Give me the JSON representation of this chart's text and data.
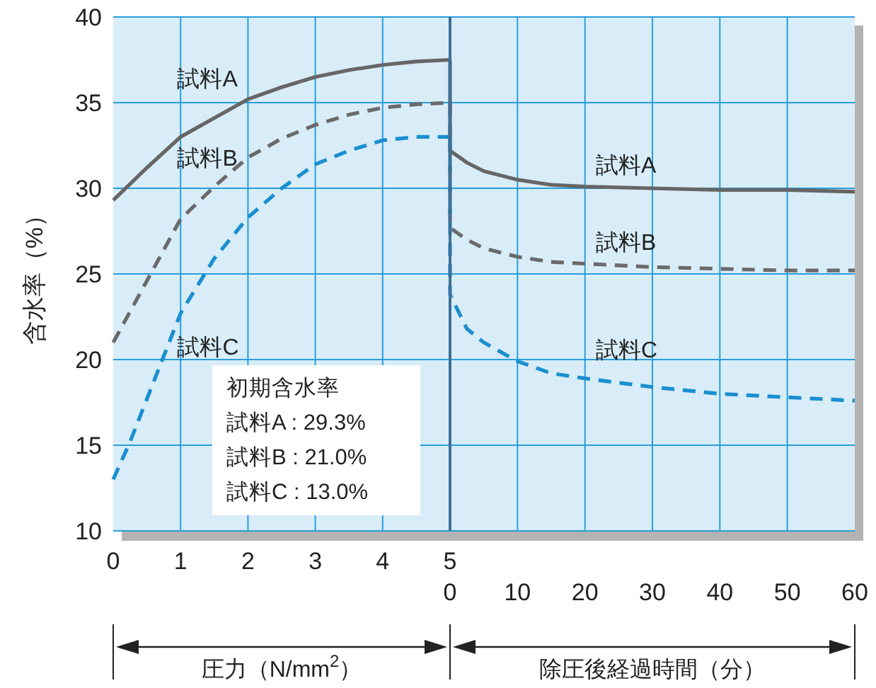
{
  "chart_data": [
    {
      "type": "line",
      "xlabel": "圧力（N/mm$^{2}$）",
      "ylabel": "含水率（%）",
      "xlim": [
        0,
        5
      ],
      "xticks": [
        0,
        1,
        2,
        3,
        4,
        5
      ],
      "ylim": [
        10,
        40
      ],
      "yticks": [
        10,
        15,
        20,
        25,
        30,
        35,
        40
      ],
      "grid": true,
      "annotations": [
        "初期含水率",
        "試料A : 29.3%",
        "試料B : 21.0%",
        "試料C : 13.0%"
      ],
      "series": [
        {
          "name": "試料A",
          "color": "#666666",
          "line_style": "solid",
          "x": [
            0,
            0.5,
            1,
            1.5,
            2,
            2.5,
            3,
            3.5,
            4,
            4.5,
            5
          ],
          "values": [
            29.3,
            31.2,
            33.0,
            34.1,
            35.2,
            35.9,
            36.5,
            36.9,
            37.2,
            37.4,
            37.5
          ]
        },
        {
          "name": "試料B",
          "color": "#6a6a6a",
          "line_style": "dashed",
          "x": [
            0,
            0.5,
            1,
            1.5,
            2,
            2.5,
            3,
            3.5,
            4,
            4.5,
            5
          ],
          "values": [
            21.0,
            24.6,
            28.2,
            30.1,
            31.8,
            32.9,
            33.7,
            34.3,
            34.7,
            34.9,
            35.0
          ]
        },
        {
          "name": "試料C",
          "color": "#1a8fd0",
          "line_style": "dashed",
          "x": [
            0,
            0.25,
            0.5,
            1,
            1.5,
            2,
            2.5,
            3,
            3.5,
            4,
            4.5,
            5
          ],
          "values": [
            13.0,
            15.2,
            17.7,
            22.7,
            25.9,
            28.3,
            30.0,
            31.4,
            32.2,
            32.8,
            33.0,
            33.0
          ]
        }
      ]
    },
    {
      "type": "line",
      "xlabel": "除圧後経過時間（分）",
      "xlim": [
        0,
        60
      ],
      "xticks": [
        0,
        10,
        20,
        30,
        40,
        50,
        60
      ],
      "ylim": [
        10,
        40
      ],
      "grid": true,
      "tick_labels": "x",
      "series": [
        {
          "name": "試料A",
          "color": "#666666",
          "line_style": "solid",
          "x": [
            0,
            0,
            2.5,
            5,
            10,
            15,
            20,
            30,
            40,
            50,
            60
          ],
          "values": [
            37.5,
            32.2,
            31.5,
            31.0,
            30.5,
            30.2,
            30.1,
            30.0,
            29.9,
            29.9,
            29.8
          ]
        },
        {
          "name": "試料B",
          "color": "#6a6a6a",
          "line_style": "dashed",
          "x": [
            0,
            0,
            2.5,
            5,
            10,
            15,
            20,
            30,
            40,
            50,
            60
          ],
          "values": [
            35.0,
            27.7,
            27.0,
            26.5,
            26.0,
            25.7,
            25.6,
            25.4,
            25.3,
            25.2,
            25.2
          ]
        },
        {
          "name": "試料C",
          "color": "#1a8fd0",
          "line_style": "dashed",
          "x": [
            0,
            0,
            2.5,
            5,
            10,
            15,
            20,
            30,
            40,
            50,
            60
          ],
          "values": [
            33.0,
            23.8,
            21.8,
            21.0,
            19.9,
            19.2,
            18.9,
            18.4,
            18.0,
            17.8,
            17.6
          ]
        }
      ]
    }
  ]
}
